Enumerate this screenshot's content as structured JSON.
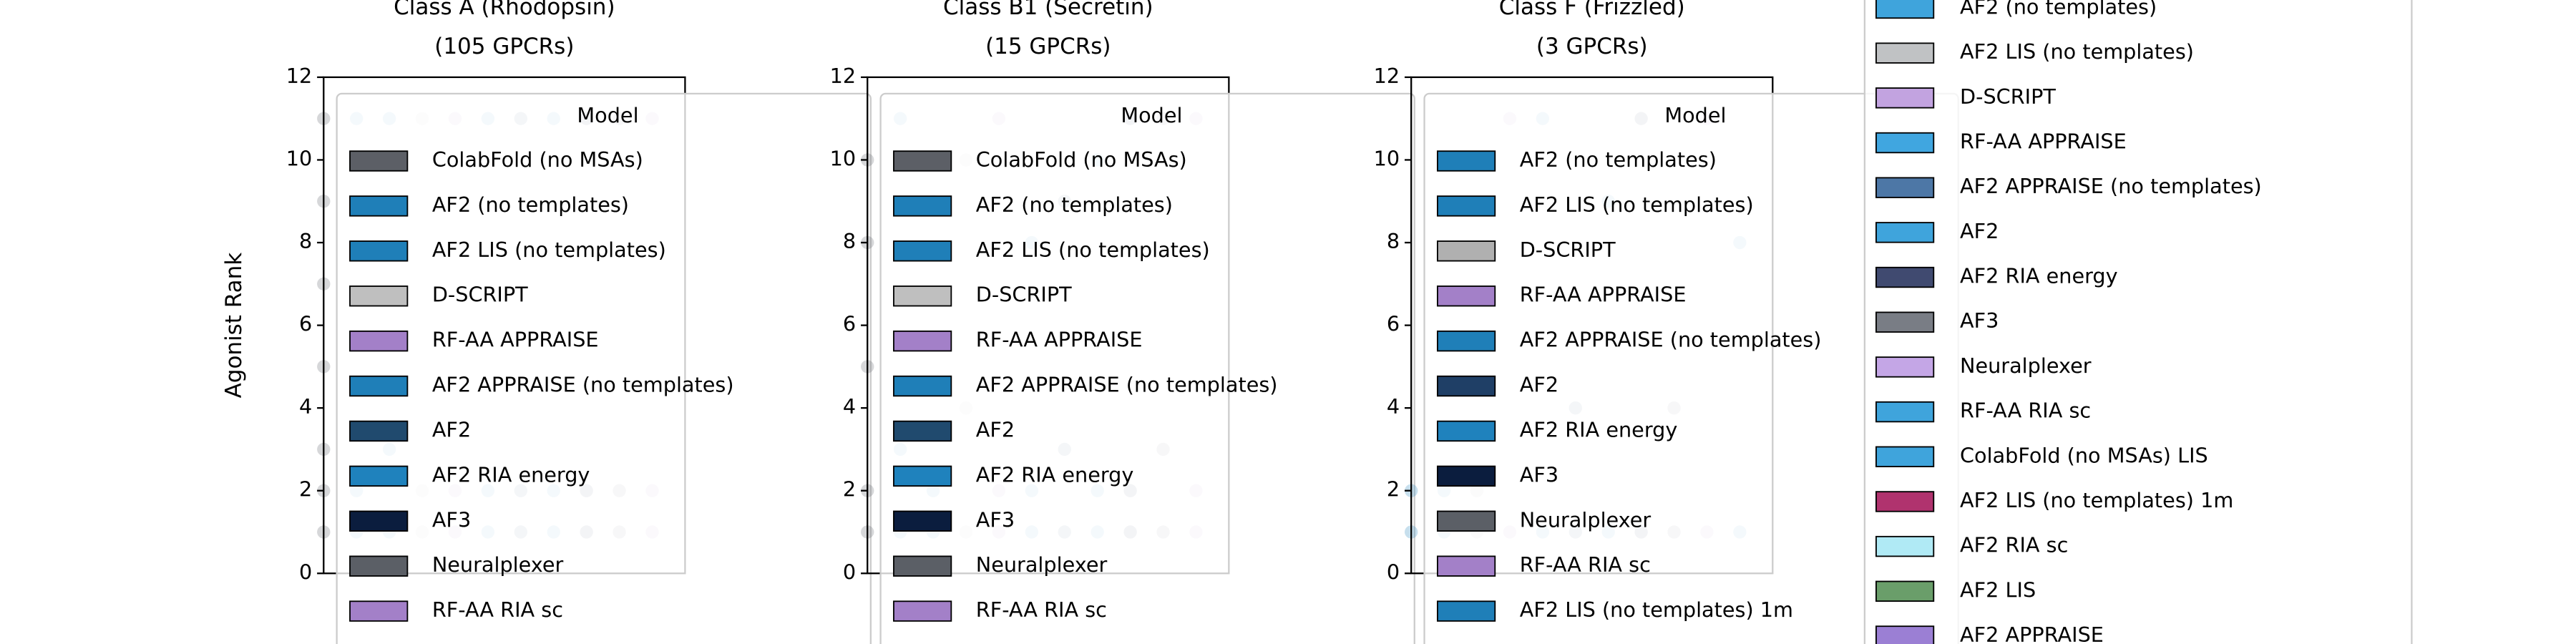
{
  "chart_data": [
    {
      "type": "strip",
      "title": "Class A (Rhodopsin)",
      "subtitle": "(105 GPCRs)",
      "ylabel": "Agonist Rank",
      "ylim": [
        0,
        12
      ],
      "yticks": [
        0,
        2,
        4,
        6,
        8,
        10,
        12
      ],
      "legend_title": "Model",
      "series": [
        {
          "name": "ColabFold (no MSAs)",
          "color": "#5c5f66",
          "values": [
            1,
            2,
            3,
            5,
            7,
            9,
            11
          ]
        },
        {
          "name": "AF2 (no templates)",
          "color": "#1f7fb8",
          "values": [
            1,
            2,
            11
          ]
        },
        {
          "name": "AF2 LIS (no templates)",
          "color": "#1f7fb8",
          "values": [
            1,
            3,
            11
          ]
        },
        {
          "name": "D-SCRIPT",
          "color": "#bfbfbf",
          "values": [
            1,
            2,
            11
          ]
        },
        {
          "name": "RF-AA APPRAISE",
          "color": "#a380c8",
          "values": [
            1,
            2,
            11
          ]
        },
        {
          "name": "AF2 APPRAISE (no templates)",
          "color": "#1f7fb8",
          "values": [
            1,
            2,
            11
          ]
        },
        {
          "name": "AF2",
          "color": "#204a6e",
          "values": [
            1,
            2,
            11
          ]
        },
        {
          "name": "AF2 RIA energy",
          "color": "#1f82bd",
          "values": [
            1,
            2,
            11
          ]
        },
        {
          "name": "AF3",
          "color": "#0b1d3e",
          "values": [
            1,
            2,
            11
          ]
        },
        {
          "name": "Neuralplexer",
          "color": "#5b5f66",
          "values": [
            1,
            2,
            11
          ]
        },
        {
          "name": "RF-AA RIA sc",
          "color": "#a380c8",
          "values": [
            1,
            2,
            11
          ]
        }
      ]
    },
    {
      "type": "strip",
      "title": "Class B1 (Secretin)",
      "subtitle": "(15 GPCRs)",
      "ylim": [
        0,
        12
      ],
      "yticks": [
        0,
        2,
        4,
        6,
        8,
        10,
        12
      ],
      "legend_title": "Model",
      "series": [
        {
          "name": "ColabFold (no MSAs)",
          "color": "#5c5f66",
          "values": [
            1,
            2,
            5,
            8,
            10
          ]
        },
        {
          "name": "AF2 (no templates)",
          "color": "#1f7fb8",
          "values": [
            1,
            3,
            11
          ]
        },
        {
          "name": "AF2 LIS (no templates)",
          "color": "#1f7fb8",
          "values": [
            1,
            2,
            9
          ]
        },
        {
          "name": "D-SCRIPT",
          "color": "#bfbfbf",
          "values": [
            1,
            4,
            10
          ]
        },
        {
          "name": "RF-AA APPRAISE",
          "color": "#a380c8",
          "values": [
            1,
            2,
            11
          ]
        },
        {
          "name": "AF2 APPRAISE (no templates)",
          "color": "#1f7fb8",
          "values": [
            1,
            2,
            8
          ]
        },
        {
          "name": "AF2",
          "color": "#204a6e",
          "values": [
            1,
            3,
            9
          ]
        },
        {
          "name": "AF2 RIA energy",
          "color": "#1f82bd",
          "values": [
            1,
            2,
            10
          ]
        },
        {
          "name": "AF3",
          "color": "#0b1d3e",
          "values": [
            1,
            2,
            11
          ]
        },
        {
          "name": "Neuralplexer",
          "color": "#5b5f66",
          "values": [
            1,
            3,
            11
          ]
        },
        {
          "name": "RF-AA RIA sc",
          "color": "#a380c8",
          "values": [
            1,
            2,
            11
          ]
        }
      ]
    },
    {
      "type": "strip",
      "title": "Class F (Frizzled)",
      "subtitle": "(3 GPCRs)",
      "ylim": [
        0,
        12
      ],
      "yticks": [
        0,
        2,
        4,
        6,
        8,
        10,
        12
      ],
      "legend_title": "Model",
      "series": [
        {
          "name": "AF2 (no templates)",
          "color": "#1f7fb8",
          "values": [
            1,
            2
          ]
        },
        {
          "name": "AF2 LIS (no templates)",
          "color": "#1f7fb8",
          "values": [
            1,
            2
          ]
        },
        {
          "name": "D-SCRIPT",
          "color": "#b0b0b0",
          "values": [
            1,
            2
          ]
        },
        {
          "name": "RF-AA APPRAISE",
          "color": "#a380c8",
          "values": [
            1,
            11
          ]
        },
        {
          "name": "AF2 APPRAISE (no templates)",
          "color": "#1f7fb8",
          "values": [
            1,
            11
          ]
        },
        {
          "name": "AF2",
          "color": "#1f3f66",
          "values": [
            1,
            4
          ]
        },
        {
          "name": "AF2 RIA energy",
          "color": "#1f82bd",
          "values": [
            1,
            9
          ]
        },
        {
          "name": "AF3",
          "color": "#0b1d3e",
          "values": [
            1,
            11
          ]
        },
        {
          "name": "Neuralplexer",
          "color": "#5b5f66",
          "values": [
            1,
            4
          ]
        },
        {
          "name": "RF-AA RIA sc",
          "color": "#a380c8",
          "values": [
            1,
            11
          ]
        },
        {
          "name": "AF2 LIS (no templates) 1m",
          "color": "#1f7fb8",
          "values": [
            1,
            8
          ]
        }
      ]
    }
  ],
  "side_legend": {
    "entries": [
      {
        "name": "AF2 (no templates)",
        "color": "#3fa4dc"
      },
      {
        "name": "AF2 LIS (no templates)",
        "color": "#c0c2c4"
      },
      {
        "name": "D-SCRIPT",
        "color": "#c2a3e0"
      },
      {
        "name": "RF-AA APPRAISE",
        "color": "#40a6e0"
      },
      {
        "name": "AF2 APPRAISE (no templates)",
        "color": "#4d77a6"
      },
      {
        "name": "AF2",
        "color": "#3fa4dc"
      },
      {
        "name": "AF2 RIA energy",
        "color": "#404a70"
      },
      {
        "name": "AF3",
        "color": "#797d85"
      },
      {
        "name": "Neuralplexer",
        "color": "#c4a6e6"
      },
      {
        "name": "RF-AA RIA sc",
        "color": "#3fa4dc"
      },
      {
        "name": "ColabFold (no MSAs) LIS",
        "color": "#3fa4dc"
      },
      {
        "name": "AF2 LIS (no templates) 1m",
        "color": "#b0336e"
      },
      {
        "name": "AF2 RIA sc",
        "color": "#b0eaf5"
      },
      {
        "name": "AF2 LIS",
        "color": "#6a9e6a"
      },
      {
        "name": "AF2 APPRAISE",
        "color": "#9b7fd4"
      }
    ]
  }
}
